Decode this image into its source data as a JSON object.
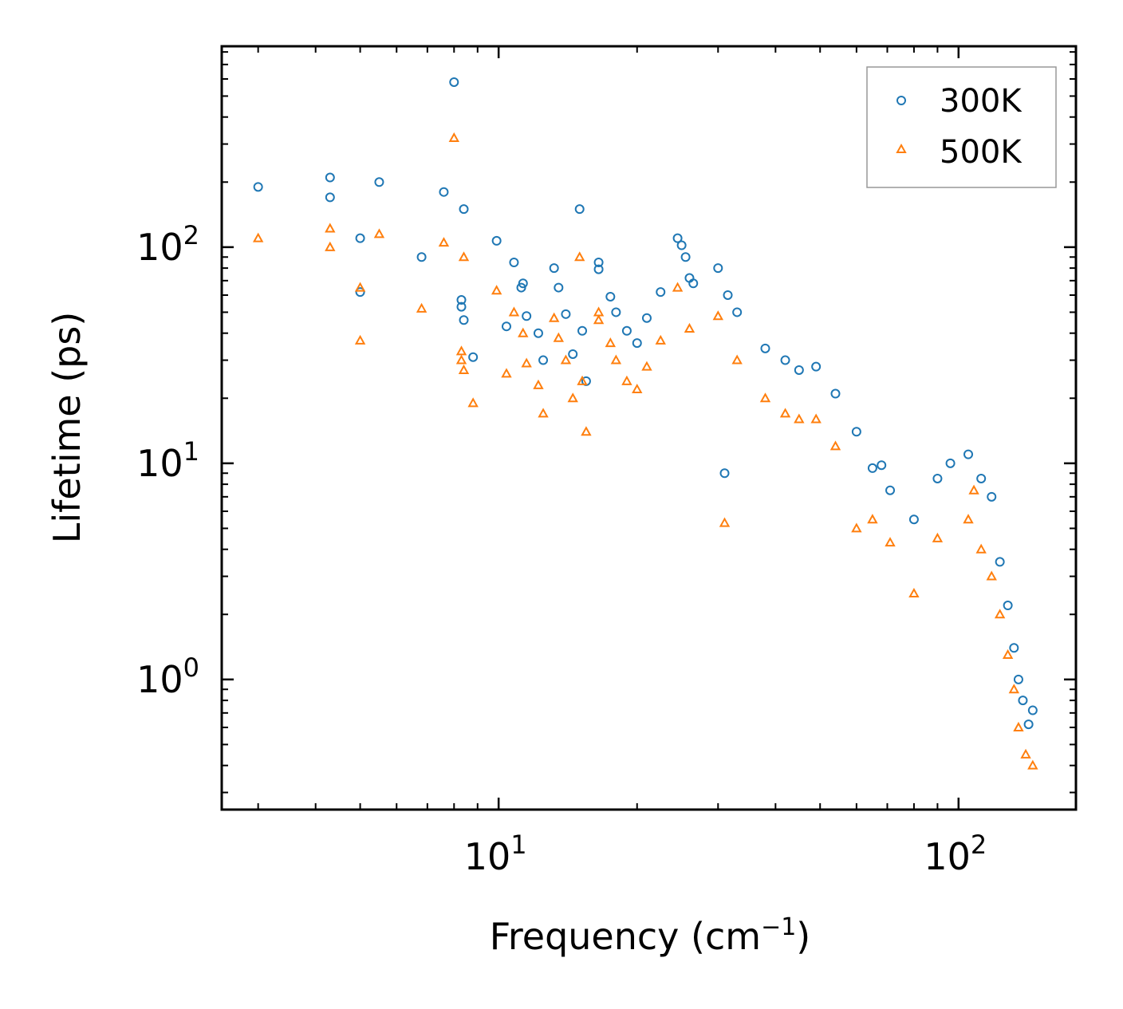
{
  "chart_data": {
    "type": "scatter",
    "title": "",
    "xlabel": "Frequency (cm",
    "xlabel_sup": "−1",
    "xlabel_close": ")",
    "ylabel": "Lifetime (ps)",
    "xscale": "log",
    "yscale": "log",
    "xlim": [
      2.5,
      180
    ],
    "ylim": [
      0.25,
      850
    ],
    "x_ticks": [
      {
        "value": 10,
        "base": "10",
        "exp": "1"
      },
      {
        "value": 100,
        "base": "10",
        "exp": "2"
      }
    ],
    "y_ticks": [
      {
        "value": 1,
        "base": "10",
        "exp": "0"
      },
      {
        "value": 10,
        "base": "10",
        "exp": "1"
      },
      {
        "value": 100,
        "base": "10",
        "exp": "2"
      }
    ],
    "legend_position": "top-right",
    "series": [
      {
        "name": "300K",
        "marker": "circle",
        "color": "#1f77b4",
        "points": [
          [
            3.0,
            190
          ],
          [
            4.3,
            210
          ],
          [
            4.3,
            170
          ],
          [
            5.0,
            110
          ],
          [
            5.0,
            62
          ],
          [
            5.5,
            200
          ],
          [
            6.8,
            90
          ],
          [
            7.6,
            180
          ],
          [
            8.0,
            580
          ],
          [
            8.3,
            57
          ],
          [
            8.3,
            53
          ],
          [
            8.4,
            150
          ],
          [
            8.4,
            46
          ],
          [
            8.8,
            31
          ],
          [
            9.9,
            107
          ],
          [
            10.4,
            43
          ],
          [
            10.8,
            85
          ],
          [
            11.3,
            68
          ],
          [
            11.2,
            65
          ],
          [
            11.5,
            48
          ],
          [
            12.2,
            40
          ],
          [
            12.5,
            30
          ],
          [
            13.2,
            80
          ],
          [
            13.5,
            65
          ],
          [
            14.0,
            49
          ],
          [
            14.5,
            32
          ],
          [
            15.0,
            150
          ],
          [
            15.2,
            41
          ],
          [
            15.5,
            24
          ],
          [
            16.5,
            85
          ],
          [
            16.5,
            79
          ],
          [
            17.5,
            59
          ],
          [
            18.0,
            50
          ],
          [
            19.0,
            41
          ],
          [
            20.0,
            36
          ],
          [
            21.0,
            47
          ],
          [
            22.5,
            62
          ],
          [
            24.5,
            110
          ],
          [
            25.0,
            102
          ],
          [
            25.5,
            90
          ],
          [
            26.0,
            72
          ],
          [
            26.5,
            68
          ],
          [
            30.0,
            80
          ],
          [
            31.5,
            60
          ],
          [
            33.0,
            50
          ],
          [
            38.0,
            34
          ],
          [
            42.0,
            30
          ],
          [
            45.0,
            27
          ],
          [
            49.0,
            28
          ],
          [
            54.0,
            21
          ],
          [
            60.0,
            14
          ],
          [
            65.0,
            9.5
          ],
          [
            68.0,
            9.8
          ],
          [
            71.0,
            7.5
          ],
          [
            80.0,
            5.5
          ],
          [
            90.0,
            8.5
          ],
          [
            96.0,
            10
          ],
          [
            105.0,
            11
          ],
          [
            112.0,
            8.5
          ],
          [
            118.0,
            7.0
          ],
          [
            123.0,
            3.5
          ],
          [
            128.0,
            2.2
          ],
          [
            132.0,
            1.4
          ],
          [
            135.0,
            1.0
          ],
          [
            138.0,
            0.8
          ],
          [
            142.0,
            0.62
          ],
          [
            145.0,
            0.72
          ],
          [
            31.0,
            9.0
          ]
        ]
      },
      {
        "name": "500K",
        "marker": "triangle",
        "color": "#ff7f0e",
        "points": [
          [
            3.0,
            110
          ],
          [
            4.3,
            122
          ],
          [
            4.3,
            100
          ],
          [
            5.0,
            65
          ],
          [
            5.0,
            37
          ],
          [
            5.5,
            115
          ],
          [
            6.8,
            52
          ],
          [
            7.6,
            105
          ],
          [
            8.0,
            320
          ],
          [
            8.3,
            33
          ],
          [
            8.3,
            30
          ],
          [
            8.4,
            90
          ],
          [
            8.4,
            27
          ],
          [
            8.8,
            19
          ],
          [
            9.9,
            63
          ],
          [
            10.4,
            26
          ],
          [
            10.8,
            50
          ],
          [
            11.3,
            40
          ],
          [
            11.5,
            29
          ],
          [
            12.2,
            23
          ],
          [
            12.5,
            17
          ],
          [
            13.2,
            47
          ],
          [
            13.5,
            38
          ],
          [
            14.0,
            30
          ],
          [
            14.5,
            20
          ],
          [
            15.0,
            90
          ],
          [
            15.2,
            24
          ],
          [
            15.5,
            14
          ],
          [
            16.5,
            50
          ],
          [
            16.5,
            46
          ],
          [
            17.5,
            36
          ],
          [
            18.0,
            30
          ],
          [
            19.0,
            24
          ],
          [
            20.0,
            22
          ],
          [
            21.0,
            28
          ],
          [
            22.5,
            37
          ],
          [
            24.5,
            65
          ],
          [
            26.0,
            42
          ],
          [
            30.0,
            48
          ],
          [
            31.0,
            5.3
          ],
          [
            33.0,
            30
          ],
          [
            38.0,
            20
          ],
          [
            42.0,
            17
          ],
          [
            45.0,
            16
          ],
          [
            49.0,
            16
          ],
          [
            54.0,
            12
          ],
          [
            60.0,
            5.0
          ],
          [
            65.0,
            5.5
          ],
          [
            71.0,
            4.3
          ],
          [
            80.0,
            2.5
          ],
          [
            90.0,
            4.5
          ],
          [
            105.0,
            5.5
          ],
          [
            108.0,
            7.5
          ],
          [
            112.0,
            4.0
          ],
          [
            118.0,
            3.0
          ],
          [
            123.0,
            2.0
          ],
          [
            128.0,
            1.3
          ],
          [
            132.0,
            0.9
          ],
          [
            135.0,
            0.6
          ],
          [
            140.0,
            0.45
          ],
          [
            145.0,
            0.4
          ]
        ]
      }
    ]
  }
}
